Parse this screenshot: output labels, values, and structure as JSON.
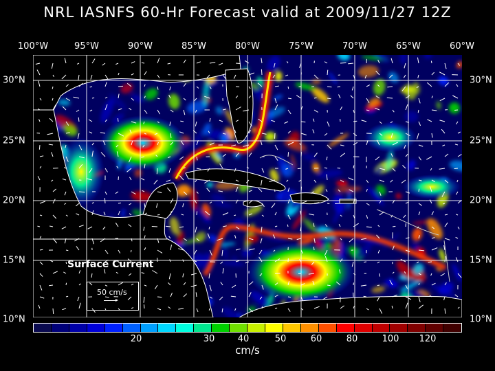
{
  "title": "NRL IASNFS  60-Hr Forecast valid at 2009/11/27 12Z",
  "lon_labels": [
    "100°W",
    "95°W",
    "90°W",
    "85°W",
    "80°W",
    "75°W",
    "70°W",
    "65°W",
    "60°W"
  ],
  "lat_labels": [
    "30°N",
    "25°N",
    "20°N",
    "15°N",
    "10°N"
  ],
  "legend": {
    "title": "Surface Current",
    "ref_label": "50 cm/s"
  },
  "colorbar": {
    "ticks": [
      "20",
      "30",
      "40",
      "50",
      "60",
      "80",
      "100",
      "120"
    ],
    "unit": "cm/s",
    "colors": [
      "#0a0a50",
      "#00007a",
      "#0000a8",
      "#0000d8",
      "#0020ff",
      "#0060ff",
      "#00a0ff",
      "#00d8ff",
      "#00ffe0",
      "#00e890",
      "#00d000",
      "#70e000",
      "#c8f000",
      "#ffff00",
      "#ffc800",
      "#ff9000",
      "#ff5000",
      "#ff0000",
      "#e00000",
      "#c00000",
      "#a00000",
      "#800000",
      "#600000",
      "#400000"
    ]
  },
  "map": {
    "lon_range": [
      -100,
      -60
    ],
    "lat_range": [
      10,
      31
    ],
    "gridlines": true,
    "color_variable": "surface current speed (cm/s)"
  }
}
